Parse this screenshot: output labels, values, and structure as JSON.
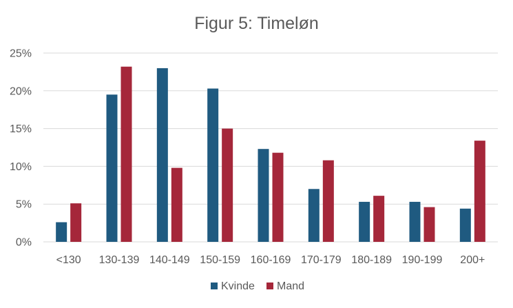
{
  "chart_data": {
    "type": "bar",
    "title": "Figur 5: Timeløn",
    "xlabel": "",
    "ylabel": "",
    "categories": [
      "<130",
      "130-139",
      "140-149",
      "150-159",
      "160-169",
      "170-179",
      "180-189",
      "190-199",
      "200+"
    ],
    "series": [
      {
        "name": "Kvinde",
        "color": "#1f5a80",
        "values": [
          0.026,
          0.195,
          0.23,
          0.203,
          0.123,
          0.07,
          0.053,
          0.053,
          0.044
        ]
      },
      {
        "name": "Mand",
        "color": "#a5273a",
        "values": [
          0.051,
          0.232,
          0.098,
          0.15,
          0.118,
          0.108,
          0.061,
          0.046,
          0.134
        ]
      }
    ],
    "ylim": [
      0,
      0.25
    ],
    "yticks": [
      0,
      0.05,
      0.1,
      0.15,
      0.2,
      0.25
    ],
    "ytick_labels": [
      "0%",
      "5%",
      "10%",
      "15%",
      "20%",
      "25%"
    ],
    "grid": true,
    "legend_position": "bottom"
  }
}
